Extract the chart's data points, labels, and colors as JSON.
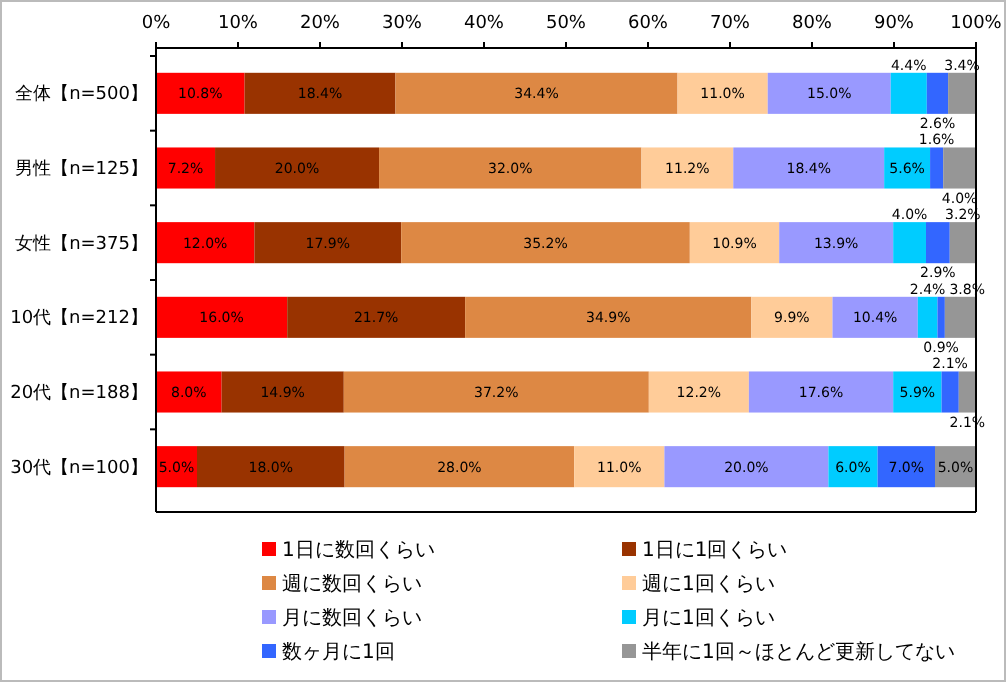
{
  "chart_data": {
    "type": "bar",
    "orientation": "horizontal",
    "stacked": true,
    "data_labels": true,
    "legend": "bottom",
    "grid": false,
    "categories": [
      "全体【n=500】",
      "男性【n=125】",
      "女性【n=375】",
      "10代【n=212】",
      "20代【n=188】",
      "30代【n=100】"
    ],
    "xlim": [
      0,
      100
    ],
    "xticks": [
      {
        "value": 0,
        "label": "0%"
      },
      {
        "value": 10,
        "label": "10%"
      },
      {
        "value": 20,
        "label": "20%"
      },
      {
        "value": 30,
        "label": "30%"
      },
      {
        "value": 40,
        "label": "40%"
      },
      {
        "value": 50,
        "label": "50%"
      },
      {
        "value": 60,
        "label": "60%"
      },
      {
        "value": 70,
        "label": "70%"
      },
      {
        "value": 80,
        "label": "80%"
      },
      {
        "value": 90,
        "label": "90%"
      },
      {
        "value": 100,
        "label": "100%"
      }
    ],
    "series": [
      {
        "name": "1日に数回くらい",
        "color": "#ff0000",
        "values": [
          10.8,
          7.2,
          12.0,
          16.0,
          8.0,
          5.0
        ],
        "value_labels": [
          "10.8%",
          "7.2%",
          "12.0%",
          "16.0%",
          "8.0%",
          "5.0%"
        ]
      },
      {
        "name": "1日に1回くらい",
        "color": "#993300",
        "values": [
          18.4,
          20.0,
          17.9,
          21.7,
          14.9,
          18.0
        ],
        "value_labels": [
          "18.4%",
          "20.0%",
          "17.9%",
          "21.7%",
          "14.9%",
          "18.0%"
        ]
      },
      {
        "name": "週に数回くらい",
        "color": "#dd8844",
        "values": [
          34.4,
          32.0,
          35.2,
          34.9,
          37.2,
          28.0
        ],
        "value_labels": [
          "34.4%",
          "32.0%",
          "35.2%",
          "34.9%",
          "37.2%",
          "28.0%"
        ]
      },
      {
        "name": "週に1回くらい",
        "color": "#ffcc99",
        "values": [
          11.0,
          11.2,
          10.9,
          9.9,
          12.2,
          11.0
        ],
        "value_labels": [
          "11.0%",
          "11.2%",
          "10.9%",
          "9.9%",
          "12.2%",
          "11.0%"
        ]
      },
      {
        "name": "月に数回くらい",
        "color": "#9999ff",
        "values": [
          15.0,
          18.4,
          13.9,
          10.4,
          17.6,
          20.0
        ],
        "value_labels": [
          "15.0%",
          "18.4%",
          "13.9%",
          "10.4%",
          "17.6%",
          "20.0%"
        ]
      },
      {
        "name": "月に1回くらい",
        "color": "#00ccff",
        "values": [
          4.4,
          5.6,
          4.0,
          2.4,
          5.9,
          6.0
        ],
        "value_labels": [
          "4.4%",
          "5.6%",
          "4.0%",
          "2.4%",
          "5.9%",
          "6.0%"
        ]
      },
      {
        "name": "数ヶ月に1回",
        "color": "#3366ff",
        "values": [
          2.6,
          1.6,
          2.9,
          0.9,
          2.1,
          7.0
        ],
        "value_labels": [
          "2.6%",
          "1.6%",
          "2.9%",
          "0.9%",
          "2.1%",
          "7.0%"
        ]
      },
      {
        "name": "半年に1回～ほとんど更新してない",
        "color": "#969696",
        "values": [
          3.4,
          4.0,
          3.2,
          3.8,
          2.1,
          5.0
        ],
        "value_labels": [
          "3.4%",
          "4.0%",
          "3.2%",
          "3.8%",
          "2.1%",
          "5.0%"
        ]
      }
    ]
  }
}
